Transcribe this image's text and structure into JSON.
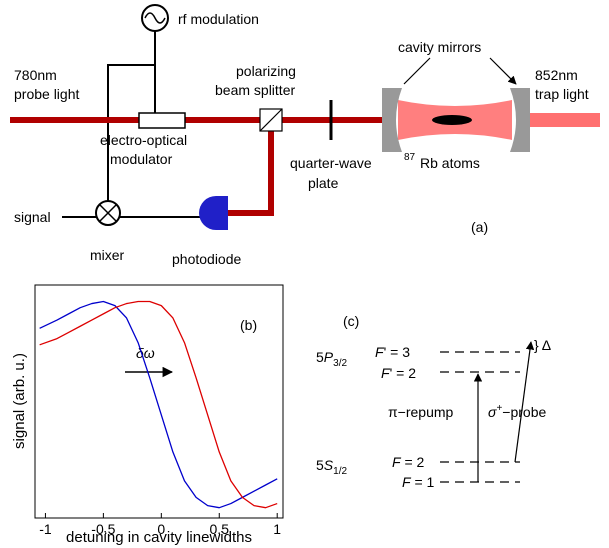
{
  "setup": {
    "rf": "rf modulation",
    "probe1": "780nm",
    "probe2": "probe light",
    "pbs1": "polarizing",
    "pbs2": "beam splitter",
    "mirrors": "cavity mirrors",
    "trap1": "852nm",
    "trap2": "trap light",
    "eom1": "electro-optical",
    "eom2": "modulator",
    "qwp1": "quarter-wave",
    "qwp2": "plate",
    "iso": "87",
    "atoms": "Rb atoms",
    "signal": "signal",
    "mixer": "mixer",
    "pd": "photodiode",
    "panel": "(a)"
  },
  "chart_data": {
    "type": "line",
    "xlabel": "detuning in cavity linewidths",
    "ylabel": "signal (arb. u.)",
    "annotations": [
      "(b)",
      "δω"
    ],
    "x": [
      -1.05,
      -0.9,
      -0.8,
      -0.7,
      -0.6,
      -0.5,
      -0.4,
      -0.3,
      -0.2,
      -0.1,
      0,
      0.1,
      0.2,
      0.3,
      0.4,
      0.5,
      0.6,
      0.7,
      0.8,
      0.9,
      1.0
    ],
    "series": [
      {
        "color": "#0000cc",
        "values": [
          0.87,
          0.91,
          0.94,
          0.97,
          0.99,
          1.0,
          0.98,
          0.92,
          0.8,
          0.63,
          0.45,
          0.27,
          0.13,
          0.05,
          0.01,
          0.0,
          0.02,
          0.05,
          0.08,
          0.11,
          0.14
        ]
      },
      {
        "color": "#dd0000",
        "values": [
          0.79,
          0.82,
          0.85,
          0.88,
          0.91,
          0.94,
          0.97,
          0.99,
          1.0,
          1.0,
          0.98,
          0.92,
          0.8,
          0.63,
          0.45,
          0.27,
          0.13,
          0.05,
          0.01,
          0.0,
          0.02
        ]
      }
    ],
    "xlim": [
      -1.09,
      1.05
    ],
    "ylim": [
      -0.05,
      1.08
    ],
    "xticks": [
      -1,
      -0.5,
      0,
      0.5,
      1
    ]
  },
  "levels": {
    "panel": "(c)",
    "p_state": [
      "5",
      "P",
      "3/2"
    ],
    "s_state": [
      "5",
      "S",
      "1/2"
    ],
    "fp3": [
      "F",
      "' = 3"
    ],
    "fp2": [
      "F",
      "' = 2"
    ],
    "f2": [
      "F",
      " = 2"
    ],
    "f1": [
      "F",
      " = 1"
    ],
    "delta": "} Δ",
    "repump": "π−repump",
    "probe": [
      "σ",
      "+",
      "−probe"
    ]
  }
}
